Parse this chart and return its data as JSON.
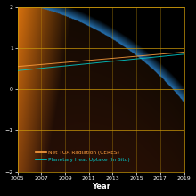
{
  "title": "",
  "xlabel": "Year",
  "ylabel": "",
  "ylim": [
    -2,
    2
  ],
  "xlim": [
    2005,
    2019
  ],
  "yticks": [
    -2,
    -1,
    0,
    1,
    2
  ],
  "xticks": [
    2005,
    2007,
    2009,
    2011,
    2013,
    2015,
    2017,
    2019
  ],
  "background_color": "#000000",
  "grid_color": "#c8960a",
  "line1_color": "#FFA040",
  "line2_color": "#00CCCC",
  "legend_label1": "Net TOA Radiation (CERES)",
  "legend_label2": "Planetary Heat Uptake (In Situ)",
  "tick_color": "#ffffff",
  "label_color": "#ffffff",
  "legend_text_color1": "#FFA040",
  "legend_text_color2": "#00CCCC",
  "figsize": [
    2.2,
    2.2
  ],
  "dpi": 100
}
